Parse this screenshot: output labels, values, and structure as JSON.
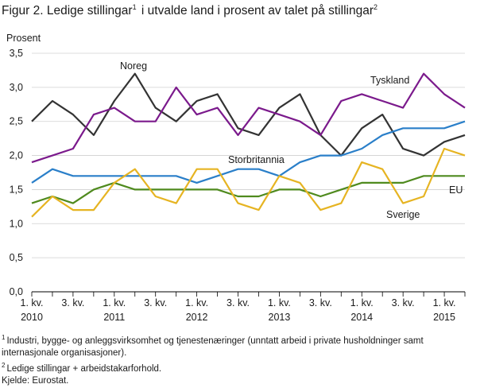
{
  "figure": {
    "title_main": "Figur 2. Ledige stillingar",
    "title_sup1": "1",
    "title_rest": "i utvalde land i prosent av talet på stillingar",
    "title_sup2": "2"
  },
  "chart_data": {
    "type": "line",
    "ylabel": "Prosent",
    "ylim": [
      0,
      3.5
    ],
    "yticks": [
      "0,0",
      "0,5",
      "1,0",
      "1,5",
      "2,0",
      "2,5",
      "3,0",
      "3,5"
    ],
    "yticks_values": [
      0,
      0.5,
      1.0,
      1.5,
      2.0,
      2.5,
      3.0,
      3.5
    ],
    "xtick_labels": [
      {
        "q": "1. kv.",
        "year": "2010",
        "index": 0
      },
      {
        "q": "3. kv.",
        "year": "",
        "index": 2
      },
      {
        "q": "1. kv.",
        "year": "2011",
        "index": 4
      },
      {
        "q": "3. kv.",
        "year": "",
        "index": 6
      },
      {
        "q": "1. kv.",
        "year": "2012",
        "index": 8
      },
      {
        "q": "3. kv.",
        "year": "",
        "index": 10
      },
      {
        "q": "1. kv.",
        "year": "2013",
        "index": 12
      },
      {
        "q": "3. kv.",
        "year": "",
        "index": 14
      },
      {
        "q": "1. kv.",
        "year": "2014",
        "index": 16
      },
      {
        "q": "3. kv.",
        "year": "",
        "index": 18
      },
      {
        "q": "1. kv.",
        "year": "2015",
        "index": 20
      }
    ],
    "x": [
      "2010K1",
      "2010K2",
      "2010K3",
      "2010K4",
      "2011K1",
      "2011K2",
      "2011K3",
      "2011K4",
      "2012K1",
      "2012K2",
      "2012K3",
      "2012K4",
      "2013K1",
      "2013K2",
      "2013K3",
      "2013K4",
      "2014K1",
      "2014K2",
      "2014K3",
      "2014K4",
      "2015K1",
      "2015K2"
    ],
    "grid": true,
    "series": [
      {
        "name": "Noreg",
        "color": "#333333",
        "values": [
          2.5,
          2.8,
          2.6,
          2.3,
          2.8,
          3.2,
          2.7,
          2.5,
          2.8,
          2.9,
          2.4,
          2.3,
          2.7,
          2.9,
          2.3,
          2.0,
          2.4,
          2.6,
          2.1,
          2.0,
          2.2,
          2.3
        ]
      },
      {
        "name": "Tyskland",
        "color": "#7b1a8c",
        "values": [
          1.9,
          2.0,
          2.1,
          2.6,
          2.7,
          2.5,
          2.5,
          3.0,
          2.6,
          2.7,
          2.3,
          2.7,
          2.6,
          2.5,
          2.3,
          2.8,
          2.9,
          2.8,
          2.7,
          3.2,
          2.9,
          2.7
        ]
      },
      {
        "name": "Storbritannia",
        "color": "#2a7fc9",
        "values": [
          1.6,
          1.8,
          1.7,
          1.7,
          1.7,
          1.7,
          1.7,
          1.7,
          1.6,
          1.7,
          1.8,
          1.8,
          1.7,
          1.9,
          2.0,
          2.0,
          2.1,
          2.3,
          2.4,
          2.4,
          2.4,
          2.5
        ]
      },
      {
        "name": "EU",
        "color": "#4f8a1e",
        "values": [
          1.3,
          1.4,
          1.3,
          1.5,
          1.6,
          1.5,
          1.5,
          1.5,
          1.5,
          1.5,
          1.4,
          1.4,
          1.5,
          1.5,
          1.4,
          1.5,
          1.6,
          1.6,
          1.6,
          1.7,
          1.7,
          1.7
        ]
      },
      {
        "name": "Sverige",
        "color": "#e6b422",
        "values": [
          1.1,
          1.4,
          1.2,
          1.2,
          1.6,
          1.8,
          1.4,
          1.3,
          1.8,
          1.8,
          1.3,
          1.2,
          1.7,
          1.6,
          1.2,
          1.3,
          1.9,
          1.8,
          1.3,
          1.4,
          2.1,
          2.0
        ]
      }
    ]
  },
  "notes": {
    "n1_sup": "1",
    "n1_text": "Industri, bygge- og anleggsvirksomhet og tjenestenæringer (unntatt arbeid i private husholdninger  samt internasjonale organisasjoner).",
    "n2_sup": "2",
    "n2_text": "Ledige stillingar + arbeidstakarforhold.",
    "source": "Kjelde: Eurostat."
  }
}
